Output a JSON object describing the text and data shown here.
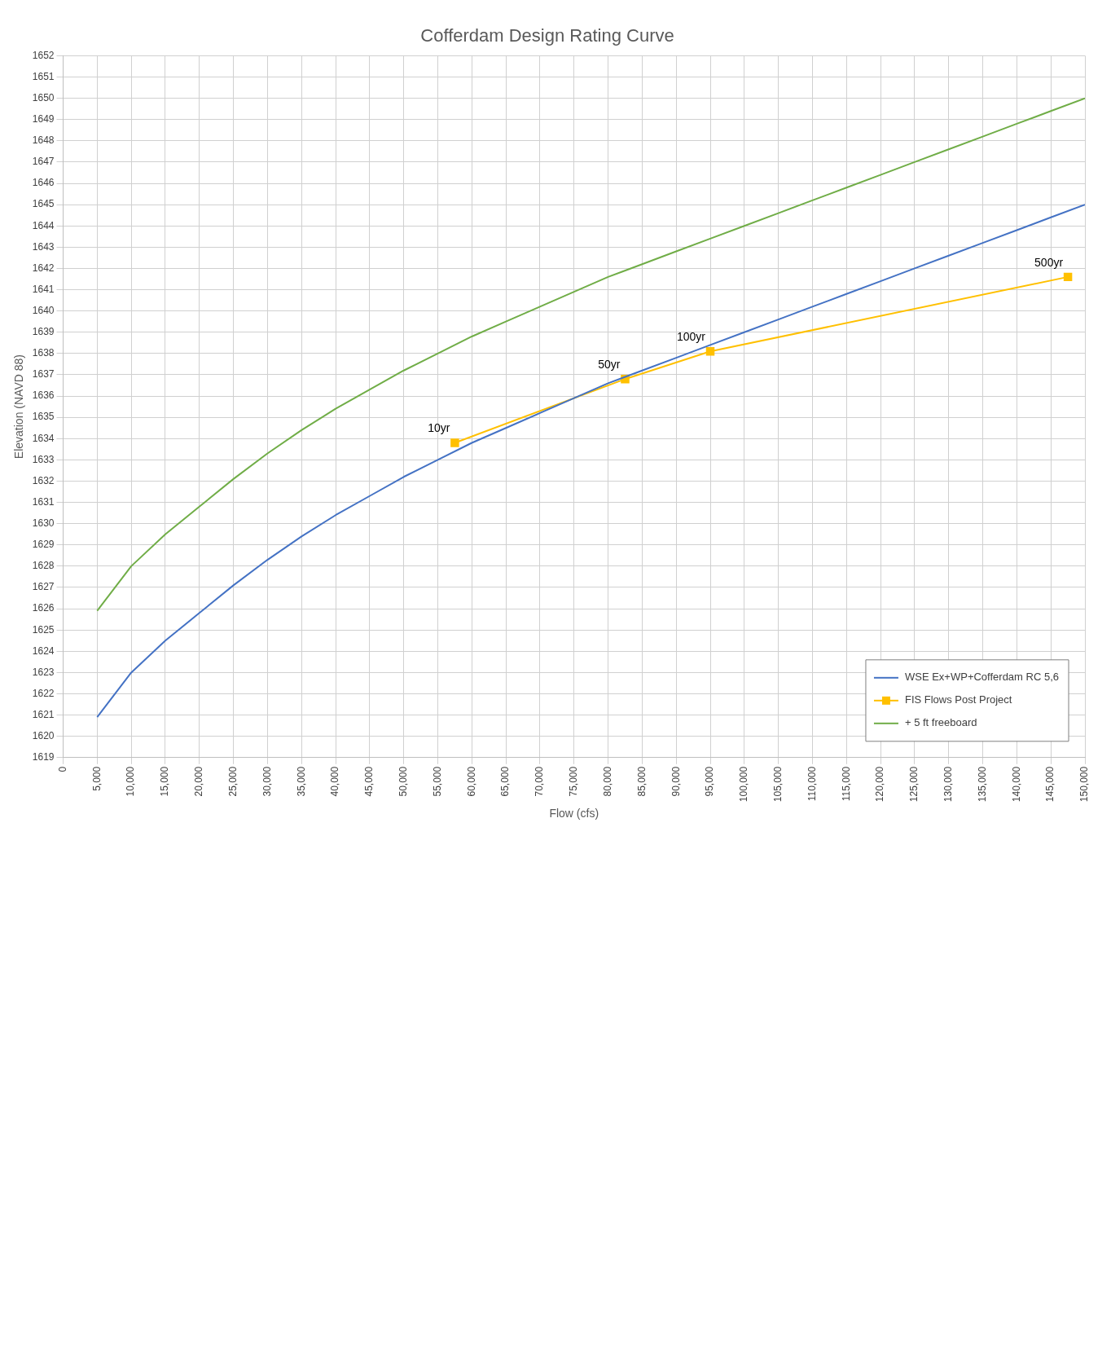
{
  "chart_data": {
    "type": "line",
    "title": "Cofferdam Design Rating Curve",
    "xlabel": "Flow (cfs)",
    "ylabel": "Elevation (NAVD 88)",
    "xlim": [
      0,
      150000
    ],
    "ylim": [
      1619,
      1652
    ],
    "xticks": [
      0,
      {
        "value": 5000,
        "label": "5,000"
      },
      {
        "value": 10000,
        "label": "10,000"
      },
      {
        "value": 15000,
        "label": "15,000"
      },
      {
        "value": 20000,
        "label": "20,000"
      },
      {
        "value": 25000,
        "label": "25,000"
      },
      {
        "value": 30000,
        "label": "30,000"
      },
      {
        "value": 35000,
        "label": "35,000"
      },
      {
        "value": 40000,
        "label": "40,000"
      },
      {
        "value": 45000,
        "label": "45,000"
      },
      {
        "value": 50000,
        "label": "50,000"
      },
      {
        "value": 55000,
        "label": "55,000"
      },
      {
        "value": 60000,
        "label": "60,000"
      },
      {
        "value": 65000,
        "label": "65,000"
      },
      {
        "value": 70000,
        "label": "70,000"
      },
      {
        "value": 75000,
        "label": "75,000"
      },
      {
        "value": 80000,
        "label": "80,000"
      },
      {
        "value": 85000,
        "label": "85,000"
      },
      {
        "value": 90000,
        "label": "90,000"
      },
      {
        "value": 95000,
        "label": "95,000"
      },
      {
        "value": 100000,
        "label": "100,000"
      },
      {
        "value": 105000,
        "label": "105,000"
      },
      {
        "value": 110000,
        "label": "110,000"
      },
      {
        "value": 115000,
        "label": "115,000"
      },
      {
        "value": 120000,
        "label": "120,000"
      },
      {
        "value": 125000,
        "label": "125,000"
      },
      {
        "value": 130000,
        "label": "130,000"
      },
      {
        "value": 135000,
        "label": "135,000"
      },
      {
        "value": 140000,
        "label": "140,000"
      },
      {
        "value": 145000,
        "label": "145,000"
      },
      {
        "value": 150000,
        "label": "150,000"
      }
    ],
    "yticks": [
      1619,
      1620,
      1621,
      1622,
      1623,
      1624,
      1625,
      1626,
      1627,
      1628,
      1629,
      1630,
      1631,
      1632,
      1633,
      1634,
      1635,
      1636,
      1637,
      1638,
      1639,
      1640,
      1641,
      1642,
      1643,
      1644,
      1645,
      1646,
      1647,
      1648,
      1649,
      1650,
      1651,
      1652
    ],
    "grid": true,
    "legend": "bottom right",
    "series": [
      {
        "name": "WSE Ex+WP+Cofferdam RC 5,6",
        "color": "#4472c4",
        "marker": "none",
        "x": [
          5000,
          10000,
          15000,
          20000,
          25000,
          30000,
          35000,
          40000,
          45000,
          50000,
          55000,
          60000,
          65000,
          70000,
          75000,
          80000,
          85000,
          90000,
          95000,
          100000,
          105000,
          110000,
          115000,
          120000,
          125000,
          130000,
          135000,
          140000,
          145000,
          150000
        ],
        "values": [
          1620.9,
          1623.0,
          1624.5,
          1625.8,
          1627.1,
          1628.3,
          1629.4,
          1630.4,
          1631.3,
          1632.2,
          1633.0,
          1633.8,
          1634.5,
          1635.2,
          1635.9,
          1636.6,
          1637.2,
          1637.8,
          1638.4,
          1639.0,
          1639.6,
          1640.2,
          1640.8,
          1641.4,
          1642.0,
          1642.6,
          1643.2,
          1643.8,
          1644.4,
          1645.0
        ]
      },
      {
        "name": "FIS Flows Post Project",
        "color": "#ffc000",
        "marker": "square",
        "x": [
          57500,
          82500,
          95000,
          147500
        ],
        "values": [
          1633.8,
          1636.8,
          1638.1,
          1641.6
        ]
      },
      {
        "name": "+ 5 ft freeboard",
        "color": "#70ad47",
        "marker": "none",
        "x": [
          5000,
          10000,
          15000,
          20000,
          25000,
          30000,
          35000,
          40000,
          45000,
          50000,
          55000,
          60000,
          65000,
          70000,
          75000,
          80000,
          85000,
          90000,
          95000,
          100000,
          105000,
          110000,
          115000,
          120000,
          125000,
          130000,
          135000,
          140000,
          145000,
          150000
        ],
        "values": [
          1625.9,
          1628.0,
          1629.5,
          1630.8,
          1632.1,
          1633.3,
          1634.4,
          1635.4,
          1636.3,
          1637.2,
          1638.0,
          1638.8,
          1639.5,
          1640.2,
          1640.9,
          1641.6,
          1642.2,
          1642.8,
          1643.4,
          1644.0,
          1644.6,
          1645.2,
          1645.8,
          1646.4,
          1647.0,
          1647.6,
          1648.2,
          1648.8,
          1649.4,
          1650.0
        ]
      }
    ],
    "annotations": [
      {
        "text": "10yr",
        "x": 57500,
        "y": 1633.8
      },
      {
        "text": "50yr",
        "x": 82500,
        "y": 1636.8
      },
      {
        "text": "100yr",
        "x": 95000,
        "y": 1638.1
      },
      {
        "text": "500yr",
        "x": 147500,
        "y": 1641.6
      }
    ]
  }
}
